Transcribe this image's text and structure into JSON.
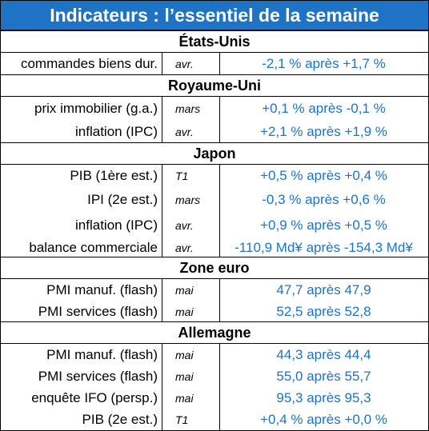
{
  "title": "Indicateurs : l’essentiel de la semaine",
  "sections": [
    {
      "name": "États-Unis",
      "rows": [
        {
          "label": "commandes biens dur.",
          "period": "avr.",
          "value": "-2,1 % après +1,7 %"
        }
      ]
    },
    {
      "name": "Royaume-Uni",
      "rows": [
        {
          "label": "prix immobilier (g.a.)",
          "period": "mars",
          "value": "+0,1 % après -0,1 %"
        },
        {
          "label": "inflation (IPC)",
          "period": "avr.",
          "value": "+2,1 % après +1,9 %"
        }
      ]
    },
    {
      "name": "Japon",
      "rows": [
        {
          "label": "PIB (1ère est.)",
          "period": "T1",
          "value": "+0,5 % après +0,4 %"
        },
        {
          "label": "IPI (2e est.)",
          "period": "mars",
          "value": "-0,3 % après +0,6 %"
        },
        {
          "label": "inflation (IPC)",
          "period": "avr.",
          "value": "+0,9 % après +0,5 %"
        },
        {
          "label": "balance commerciale",
          "period": "avr.",
          "value": "-110,9 Md¥ après -154,3 Md¥"
        }
      ]
    },
    {
      "name": "Zone euro",
      "rows": [
        {
          "label": "PMI manuf. (flash)",
          "period": "mai",
          "value": "47,7 après 47,9"
        },
        {
          "label": "PMI services (flash)",
          "period": "mai",
          "value": "52,5 après 52,8"
        }
      ]
    },
    {
      "name": "Allemagne",
      "rows": [
        {
          "label": "PMI manuf. (flash)",
          "period": "mai",
          "value": "44,3 après 44,4"
        },
        {
          "label": "PMI services (flash)",
          "period": "mai",
          "value": "55,0 après 55,7"
        },
        {
          "label": "enquête IFO (persp.)",
          "period": "mai",
          "value": "95,3 après 95,3"
        },
        {
          "label": "PIB (2e est.)",
          "period": "T1",
          "value": "+0,4 % après +0,0 %"
        }
      ]
    }
  ],
  "colors": {
    "title_background": "#1f73c4",
    "title_text": "#ffffff",
    "value_text": "#1f73c4"
  }
}
